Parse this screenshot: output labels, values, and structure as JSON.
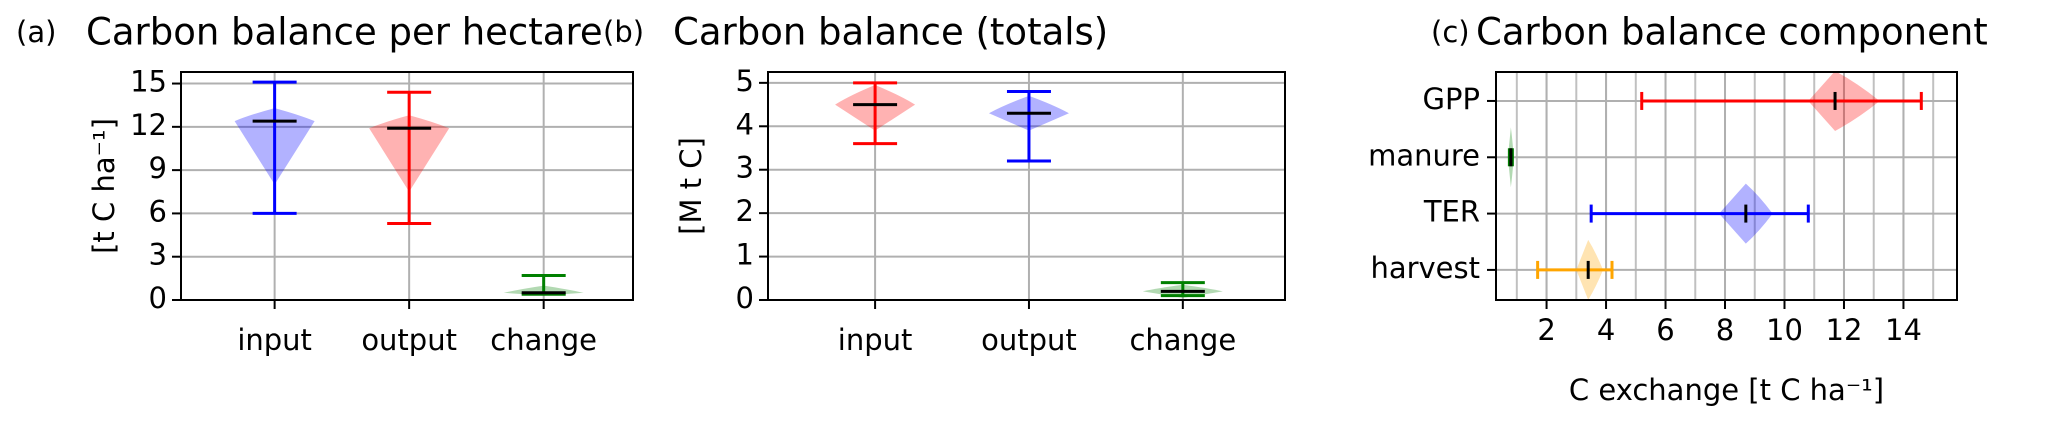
{
  "chart_data": [
    {
      "type": "violin",
      "panel_label": "(a)",
      "title": "Carbon balance per hectare",
      "ylabel": "[t C ha⁻¹]",
      "categories": [
        "input",
        "output",
        "change"
      ],
      "violins": [
        {
          "min": 6,
          "max": 15.1,
          "median": 12.4,
          "spread": [
            8,
            13.3
          ],
          "color": "#0000ff"
        },
        {
          "min": 5.3,
          "max": 14.4,
          "median": 11.9,
          "spread": [
            7.5,
            12.8
          ],
          "color": "#ff0000"
        },
        {
          "min": 0.4,
          "max": 1.7,
          "median": 0.5,
          "spread": [
            0.3,
            1
          ],
          "color": "#008000"
        }
      ],
      "ylim": [
        0,
        15.8
      ],
      "yticks": [
        0,
        3,
        6,
        9,
        12,
        15
      ],
      "grid": true
    },
    {
      "type": "violin",
      "panel_label": "(b)",
      "title": "Carbon balance (totals)",
      "ylabel": "[M t C]",
      "categories": [
        "input",
        "output",
        "change"
      ],
      "violins": [
        {
          "min": 3.6,
          "max": 5.0,
          "median": 4.5,
          "spread": [
            3.9,
            4.95
          ],
          "color": "#ff0000"
        },
        {
          "min": 3.2,
          "max": 4.8,
          "median": 4.3,
          "spread": [
            3.9,
            4.7
          ],
          "color": "#0000ff"
        },
        {
          "min": 0.1,
          "max": 0.4,
          "median": 0.2,
          "spread": [
            0.05,
            0.35
          ],
          "color": "#008000"
        }
      ],
      "ylim": [
        0,
        5.25
      ],
      "yticks": [
        0,
        1,
        2,
        3,
        4,
        5
      ],
      "grid": true
    },
    {
      "type": "violin",
      "orientation": "horizontal",
      "panel_label": "(c)",
      "title": "Carbon balance component",
      "xlabel": "C exchange [t C ha⁻¹]",
      "categories": [
        "GPP",
        "manure",
        "TER",
        "harvest"
      ],
      "violins": [
        {
          "min": 5.2,
          "max": 14.6,
          "median": 11.7,
          "spread": [
            10.8,
            13.2
          ],
          "color": "#ff0000"
        },
        {
          "min": 0.75,
          "max": 0.85,
          "median": 0.8,
          "spread": [
            0.7,
            0.9
          ],
          "color": "#008000"
        },
        {
          "min": 3.5,
          "max": 10.8,
          "median": 8.7,
          "spread": [
            7.8,
            9.6
          ],
          "color": "#0000ff"
        },
        {
          "min": 1.7,
          "max": 4.2,
          "median": 3.4,
          "spread": [
            3.0,
            3.9
          ],
          "color": "#ffa500"
        }
      ],
      "xlim": [
        0.3,
        15.8
      ],
      "xticks": [
        2,
        4,
        6,
        8,
        10,
        12,
        14
      ],
      "grid": true
    }
  ]
}
